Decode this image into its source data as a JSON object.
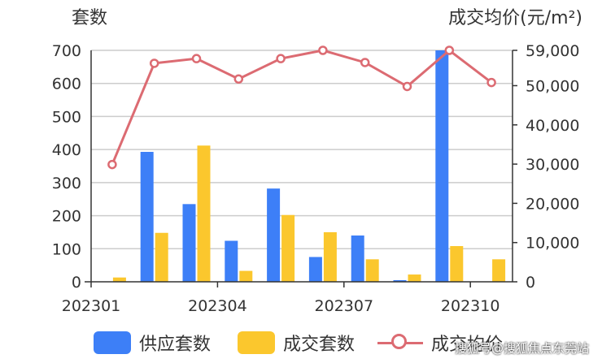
{
  "chart_data": {
    "type": "bar",
    "x_labels": [
      "202301",
      "202304",
      "202307",
      "202310"
    ],
    "categories": [
      "202301",
      "202302",
      "202303",
      "202304",
      "202305",
      "202306",
      "202307",
      "202308",
      "202309",
      "202310"
    ],
    "y_left_label": "套数",
    "y_right_label": "成交均价(元/m²)",
    "y_left_range": [
      0,
      700
    ],
    "y_right_range": [
      0,
      59000
    ],
    "y_left_ticks": [
      "0",
      "100",
      "200",
      "300",
      "400",
      "500",
      "600",
      "700"
    ],
    "y_right_ticks": [
      "0",
      "10,000",
      "20,000",
      "30,000",
      "40,000",
      "50,000",
      "59,000"
    ],
    "grid": true,
    "legend_position": "bottom",
    "series": [
      {
        "name": "供应套数",
        "type": "bar",
        "axis": "left",
        "color": "#3d7ff7",
        "values": [
          0,
          393,
          235,
          124,
          282,
          75,
          140,
          5,
          700,
          0
        ]
      },
      {
        "name": "成交套数",
        "type": "bar",
        "axis": "left",
        "color": "#fbc72d",
        "values": [
          13,
          148,
          412,
          33,
          202,
          150,
          68,
          22,
          108,
          68
        ]
      },
      {
        "name": "成交均价",
        "type": "line",
        "axis": "right",
        "color": "#dc6b72",
        "values": [
          29900,
          55700,
          56900,
          51700,
          56900,
          59000,
          55900,
          49800,
          59000,
          50800
        ]
      }
    ]
  },
  "watermark": "搜狐号@搜狐焦点东莞站"
}
